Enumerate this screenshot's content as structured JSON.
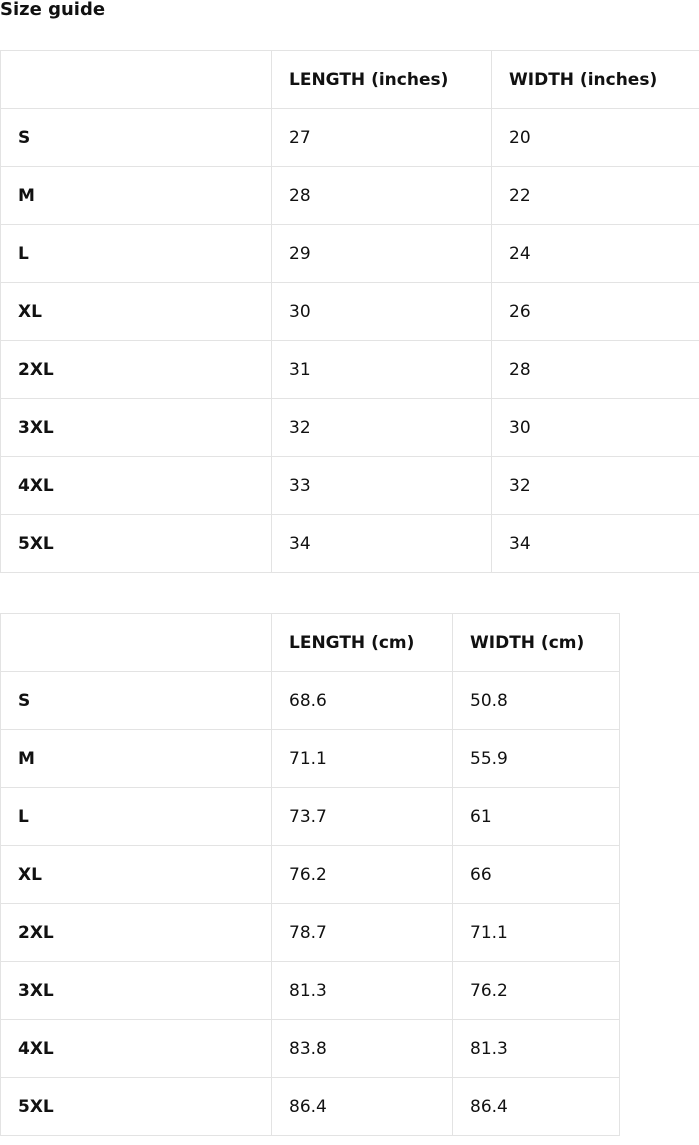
{
  "title": "Size guide",
  "tables": [
    {
      "headers": [
        "",
        "LENGTH (inches)",
        "WIDTH (inches)"
      ],
      "rows": [
        [
          "S",
          "27",
          "20"
        ],
        [
          "M",
          "28",
          "22"
        ],
        [
          "L",
          "29",
          "24"
        ],
        [
          "XL",
          "30",
          "26"
        ],
        [
          "2XL",
          "31",
          "28"
        ],
        [
          "3XL",
          "32",
          "30"
        ],
        [
          "4XL",
          "33",
          "32"
        ],
        [
          "5XL",
          "34",
          "34"
        ]
      ]
    },
    {
      "headers": [
        "",
        "LENGTH (cm)",
        "WIDTH (cm)"
      ],
      "rows": [
        [
          "S",
          "68.6",
          "50.8"
        ],
        [
          "M",
          "71.1",
          "55.9"
        ],
        [
          "L",
          "73.7",
          "61"
        ],
        [
          "XL",
          "76.2",
          "66"
        ],
        [
          "2XL",
          "78.7",
          "71.1"
        ],
        [
          "3XL",
          "81.3",
          "76.2"
        ],
        [
          "4XL",
          "83.8",
          "81.3"
        ],
        [
          "5XL",
          "86.4",
          "86.4"
        ]
      ]
    }
  ]
}
